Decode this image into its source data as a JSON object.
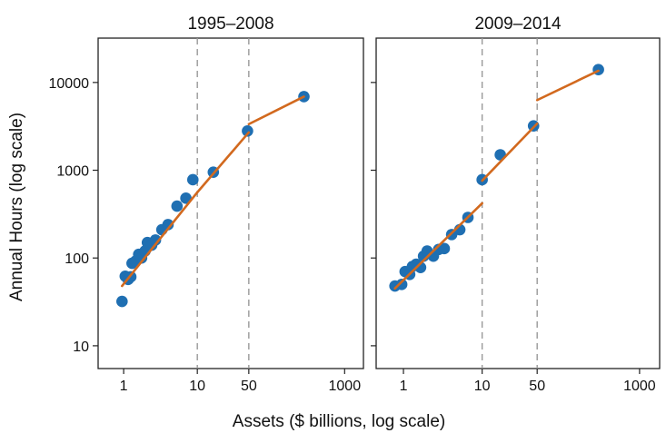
{
  "chart_data": {
    "type": "scatter",
    "xlabel": "Assets ($ billions, log scale)",
    "ylabel": "Annual Hours (log scale)",
    "x_scale": "log",
    "y_scale": "log",
    "xlim": [
      0.45,
      1800
    ],
    "ylim": [
      5.5,
      32000
    ],
    "x_ticks": [
      1,
      10,
      50,
      1000
    ],
    "x_tick_labels": [
      "1",
      "10",
      "50",
      "1000"
    ],
    "y_ticks": [
      10,
      100,
      1000,
      10000
    ],
    "y_tick_labels": [
      "10",
      "100",
      "1000",
      "10000"
    ],
    "grid": false,
    "legend": "none",
    "colors": {
      "points": "#1f6fb2",
      "fit": "#d2691e",
      "reference_lines": "#999999"
    },
    "reference_lines_x": [
      10,
      50
    ],
    "panels": [
      {
        "title": "1995–2008",
        "points": [
          [
            0.95,
            32
          ],
          [
            1.05,
            62
          ],
          [
            1.15,
            57
          ],
          [
            1.25,
            61
          ],
          [
            1.3,
            87
          ],
          [
            1.45,
            92
          ],
          [
            1.6,
            110
          ],
          [
            1.75,
            100
          ],
          [
            1.95,
            120
          ],
          [
            2.1,
            150
          ],
          [
            2.4,
            140
          ],
          [
            2.7,
            160
          ],
          [
            3.3,
            210
          ],
          [
            4.0,
            240
          ],
          [
            5.3,
            390
          ],
          [
            7.0,
            480
          ],
          [
            8.7,
            780
          ],
          [
            16.5,
            950
          ],
          [
            48,
            2800
          ],
          [
            280,
            6900
          ]
        ],
        "fit_segments": [
          {
            "x": [
              0.95,
              10
            ],
            "y": [
              48,
              560
            ]
          },
          {
            "x": [
              10,
              50
            ],
            "y": [
              560,
              2700
            ]
          },
          {
            "x": [
              50,
              280
            ],
            "y": [
              3350,
              6900
            ]
          }
        ]
      },
      {
        "title": "2009–2014",
        "points": [
          [
            0.78,
            48
          ],
          [
            0.95,
            50
          ],
          [
            1.05,
            70
          ],
          [
            1.2,
            65
          ],
          [
            1.3,
            80
          ],
          [
            1.45,
            85
          ],
          [
            1.65,
            78
          ],
          [
            1.8,
            105
          ],
          [
            2.0,
            120
          ],
          [
            2.4,
            105
          ],
          [
            2.8,
            125
          ],
          [
            3.3,
            128
          ],
          [
            4.1,
            185
          ],
          [
            5.2,
            210
          ],
          [
            6.6,
            290
          ],
          [
            10.0,
            780
          ],
          [
            17,
            1500
          ],
          [
            45,
            3200
          ],
          [
            300,
            14000
          ]
        ],
        "fit_segments": [
          {
            "x": [
              0.78,
              10
            ],
            "y": [
              45,
              420
            ]
          },
          {
            "x": [
              10,
              50
            ],
            "y": [
              760,
              3400
            ]
          },
          {
            "x": [
              50,
              300
            ],
            "y": [
              6300,
              13600
            ]
          }
        ]
      }
    ]
  }
}
